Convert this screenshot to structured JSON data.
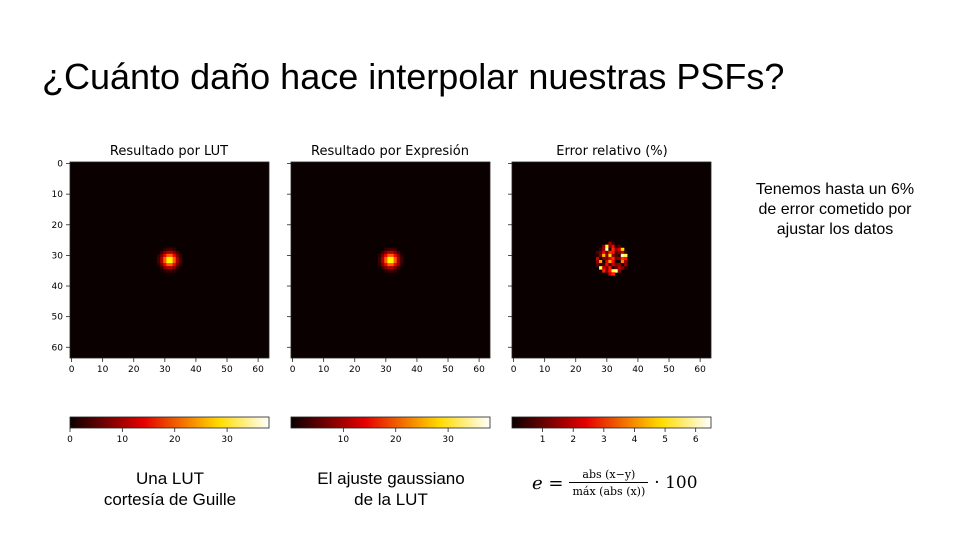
{
  "slide": {
    "title": "¿Cuánto daño hace interpolar nuestras PSFs?",
    "side_note": [
      "Tenemos hasta un 6%",
      "de error cometido por",
      "ajustar los datos"
    ],
    "captions": [
      [
        "Una LUT",
        "cortesía de Guille"
      ],
      [
        "El ajuste gaussiano",
        "de la LUT"
      ]
    ],
    "formula": {
      "lhs": "e =",
      "numerator": "abs (x−y)",
      "denominator": "máx (abs (x))",
      "rhs": "· 100"
    }
  },
  "chart_data": [
    {
      "type": "heatmap",
      "title": "Resultado por LUT",
      "grid_size": 64,
      "xlim": [
        0,
        63
      ],
      "ylim": [
        63,
        0
      ],
      "x_ticks": [
        "0",
        "10",
        "20",
        "30",
        "40",
        "50",
        "60"
      ],
      "y_ticks": [
        "0",
        "10",
        "20",
        "30",
        "40",
        "50",
        "60"
      ],
      "peak_center": [
        32,
        32
      ],
      "colormap": "hot",
      "colorbar": {
        "range": [
          0,
          38
        ],
        "ticks": [
          "0",
          "10",
          "20",
          "30"
        ]
      }
    },
    {
      "type": "heatmap",
      "title": "Resultado por Expresión",
      "grid_size": 64,
      "xlim": [
        0,
        63
      ],
      "ylim": [
        63,
        0
      ],
      "x_ticks": [
        "0",
        "10",
        "20",
        "30",
        "40",
        "50",
        "60"
      ],
      "y_ticks": [],
      "peak_center": [
        32,
        32
      ],
      "colormap": "hot",
      "colorbar": {
        "range": [
          0,
          38
        ],
        "ticks": [
          "10",
          "20",
          "30"
        ]
      }
    },
    {
      "type": "heatmap",
      "title": "Error relativo (%)",
      "grid_size": 64,
      "xlim": [
        0,
        63
      ],
      "ylim": [
        63,
        0
      ],
      "x_ticks": [
        "0",
        "10",
        "20",
        "30",
        "40",
        "50",
        "60"
      ],
      "y_ticks": [],
      "error_region": {
        "x": [
          27,
          36
        ],
        "y": [
          26,
          36
        ]
      },
      "max_value": 6.5,
      "colormap": "hot",
      "colorbar": {
        "range": [
          0,
          6.5
        ],
        "ticks": [
          "1",
          "2",
          "3",
          "4",
          "5",
          "6"
        ]
      }
    }
  ],
  "colors": {
    "background": "#ffffff",
    "text": "#000000"
  }
}
